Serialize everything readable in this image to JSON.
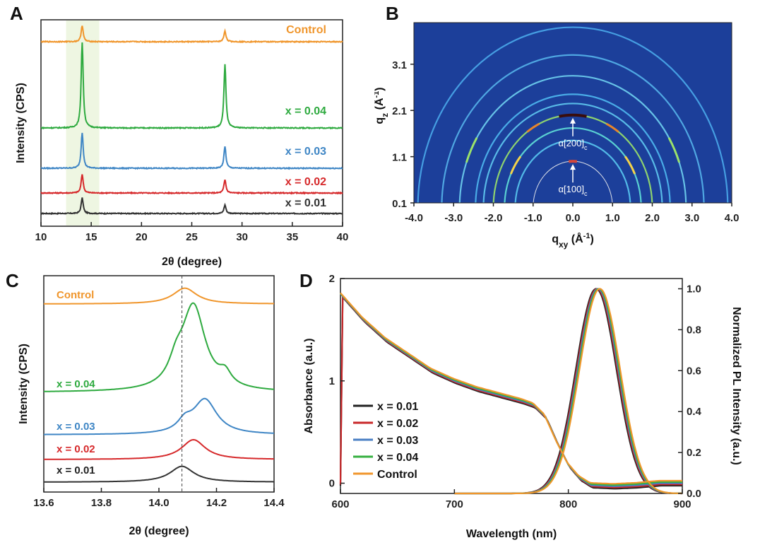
{
  "panels": [
    {
      "letter": "A"
    },
    {
      "letter": "B"
    },
    {
      "letter": "C"
    },
    {
      "letter": "D"
    }
  ],
  "chart_data": [
    {
      "id": "A",
      "type": "line",
      "xlabel": "2θ (degree)",
      "ylabel": "Intensity (CPS)",
      "xlim": [
        10,
        40
      ],
      "xticks": [
        "10",
        "15",
        "20",
        "25",
        "30",
        "35",
        "40"
      ],
      "highlight_band_x": [
        12.5,
        15.8
      ],
      "series": [
        {
          "name": "x = 0.01",
          "color": "#333333",
          "peaks": [
            {
              "x": 14.1,
              "h": 1.0
            },
            {
              "x": 28.3,
              "h": 0.55
            }
          ]
        },
        {
          "name": "x = 0.02",
          "color": "#d6292b",
          "peaks": [
            {
              "x": 14.1,
              "h": 1.2
            },
            {
              "x": 28.3,
              "h": 0.85
            }
          ]
        },
        {
          "name": "x = 0.03",
          "color": "#3f86c5",
          "peaks": [
            {
              "x": 14.1,
              "h": 2.3
            },
            {
              "x": 28.3,
              "h": 1.4
            }
          ]
        },
        {
          "name": "x = 0.04",
          "color": "#2eaa3f",
          "peaks": [
            {
              "x": 14.1,
              "h": 5.5
            },
            {
              "x": 28.3,
              "h": 4.1
            }
          ]
        },
        {
          "name": "Control",
          "color": "#f0962c",
          "peaks": [
            {
              "x": 14.1,
              "h": 1.05
            },
            {
              "x": 28.3,
              "h": 0.7
            }
          ]
        }
      ]
    },
    {
      "id": "B",
      "type": "heatmap",
      "xlabel": "q",
      "xlabel_sub": "xy",
      "xlabel_unit": "(Å",
      "xlabel_sup": "-1",
      "ylabel": "q",
      "ylabel_sub": "z",
      "ylabel_unit": "(Å",
      "ylabel_sup": "-1",
      "xlim": [
        -4.0,
        4.0
      ],
      "ylim": [
        0.1,
        4.0
      ],
      "xticks": [
        "-4.0",
        "-3.0",
        "-2.0",
        "-1.0",
        "0.0",
        "1.0",
        "2.0",
        "3.0",
        "4.0"
      ],
      "yticks": [
        "0.1",
        "1.1",
        "2.1",
        "3.1"
      ],
      "rings_q": [
        1.0,
        1.45,
        1.72,
        2.0,
        2.25,
        2.45,
        2.85,
        3.3,
        3.9
      ],
      "annotations": [
        {
          "text": "α[200]",
          "sub": "c",
          "q": 2.0
        },
        {
          "text": "α[100]",
          "sub": "c",
          "q": 1.0
        }
      ]
    },
    {
      "id": "C",
      "type": "line",
      "xlabel": "2θ (degree)",
      "ylabel": "Intensity (CPS)",
      "xlim": [
        13.6,
        14.4
      ],
      "xticks": [
        "13.6",
        "13.8",
        "14.0",
        "14.2",
        "14.4"
      ],
      "reference_line_x": 14.08,
      "series": [
        {
          "name": "x = 0.01",
          "color": "#333333",
          "peak": 14.08,
          "h": 0.8
        },
        {
          "name": "x = 0.02",
          "color": "#d6292b",
          "peak": 14.12,
          "h": 1.0
        },
        {
          "name": "x = 0.03",
          "color": "#3f86c5",
          "peak": 14.16,
          "h": 1.75
        },
        {
          "name": "x = 0.04",
          "color": "#2eaa3f",
          "peak": 14.12,
          "h": 4.3
        },
        {
          "name": "Control",
          "color": "#f0962c",
          "peak": 14.09,
          "h": 0.8
        }
      ]
    },
    {
      "id": "D",
      "type": "line",
      "xlabel": "Wavelength (nm)",
      "ylabel": "Absorbance (a.u.)",
      "ylabel_right": "Normalized PL Intensity (a.u.)",
      "xlim": [
        600,
        900
      ],
      "ylim": [
        -0.1,
        2.0
      ],
      "ylim_right": [
        0.0,
        1.05
      ],
      "xticks": [
        "600",
        "700",
        "800",
        "900"
      ],
      "yticks": [
        "0",
        "1",
        "2"
      ],
      "yticks_right": [
        "0.0",
        "0.2",
        "0.4",
        "0.6",
        "0.8",
        "1.0"
      ],
      "absorbance": {
        "x": [
          600,
          620,
          640,
          660,
          680,
          700,
          720,
          740,
          760,
          770,
          780,
          790,
          800,
          810,
          820,
          840,
          860,
          880,
          900
        ],
        "y": [
          1.85,
          1.6,
          1.4,
          1.25,
          1.1,
          1.0,
          0.92,
          0.86,
          0.8,
          0.76,
          0.65,
          0.4,
          0.18,
          0.05,
          -0.02,
          -0.03,
          -0.02,
          0.0,
          0.0
        ]
      },
      "pl": {
        "center": 826,
        "fwhm": 42,
        "max": 1.0
      },
      "series": [
        {
          "name": "x = 0.01",
          "color": "#222222"
        },
        {
          "name": "x = 0.02",
          "color": "#c9282a"
        },
        {
          "name": "x = 0.03",
          "color": "#4a7fc4"
        },
        {
          "name": "x = 0.04",
          "color": "#35b040"
        },
        {
          "name": "Control",
          "color": "#f0962c"
        }
      ]
    }
  ]
}
